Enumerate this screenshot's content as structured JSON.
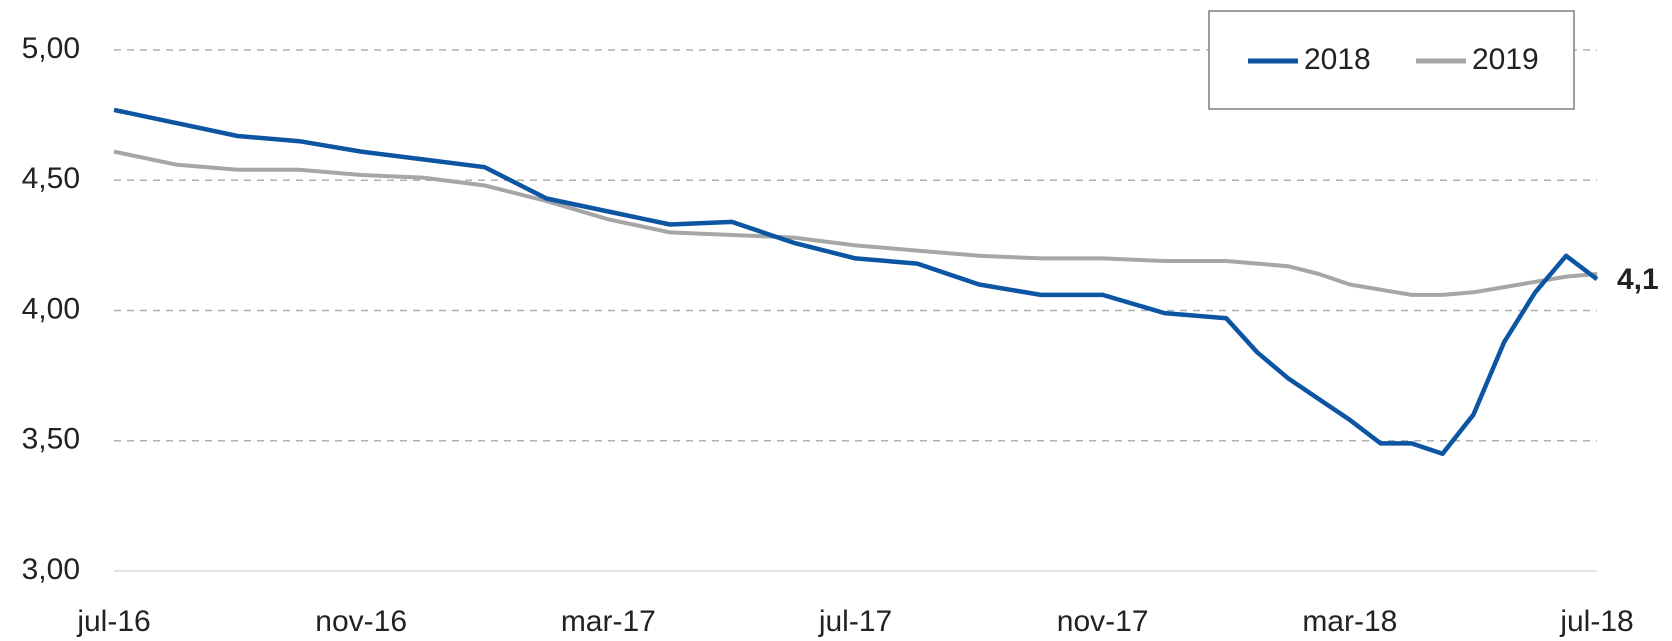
{
  "chart_data": {
    "type": "line",
    "x": [
      0,
      1,
      2,
      3,
      4,
      5,
      6,
      7,
      8,
      9,
      10,
      11,
      12,
      13,
      14,
      15,
      16,
      17,
      18,
      18.5,
      19,
      19.5,
      20,
      20.5,
      21,
      21.5,
      22,
      22.5,
      23,
      23.5,
      24
    ],
    "series": [
      {
        "name": "2018",
        "color": "#0b55a3",
        "values": [
          4.77,
          4.72,
          4.67,
          4.65,
          4.61,
          4.58,
          4.55,
          4.43,
          4.38,
          4.33,
          4.34,
          4.26,
          4.2,
          4.18,
          4.1,
          4.06,
          4.06,
          3.99,
          3.97,
          3.84,
          3.74,
          3.66,
          3.58,
          3.49,
          3.49,
          3.45,
          3.6,
          3.88,
          4.07,
          4.21,
          4.12
        ]
      },
      {
        "name": "2019",
        "color": "#a6a6a6",
        "values": [
          4.61,
          4.56,
          4.54,
          4.54,
          4.52,
          4.51,
          4.48,
          4.42,
          4.35,
          4.3,
          4.29,
          4.28,
          4.25,
          4.23,
          4.21,
          4.2,
          4.2,
          4.19,
          4.19,
          4.18,
          4.17,
          4.14,
          4.1,
          4.08,
          4.06,
          4.06,
          4.07,
          4.09,
          4.11,
          4.13,
          4.14
        ]
      }
    ],
    "xlim": [
      0,
      24
    ],
    "xticks": [
      {
        "value": 0,
        "label": "jul-16"
      },
      {
        "value": 4,
        "label": "nov-16"
      },
      {
        "value": 8,
        "label": "mar-17"
      },
      {
        "value": 12,
        "label": "jul-17"
      },
      {
        "value": 16,
        "label": "nov-17"
      },
      {
        "value": 20,
        "label": "mar-18"
      },
      {
        "value": 24,
        "label": "jul-18"
      }
    ],
    "ylim": [
      3,
      5
    ],
    "yticks": [
      {
        "value": 3,
        "label": "3,00"
      },
      {
        "value": 3.5,
        "label": "3,50"
      },
      {
        "value": 4,
        "label": "4,00"
      },
      {
        "value": 4.5,
        "label": "4,50"
      },
      {
        "value": 5,
        "label": "5,00"
      }
    ],
    "grid": true,
    "legend": "top-right",
    "annotations": [
      {
        "text": "4,1",
        "x": 24,
        "y": 4.12
      }
    ]
  }
}
